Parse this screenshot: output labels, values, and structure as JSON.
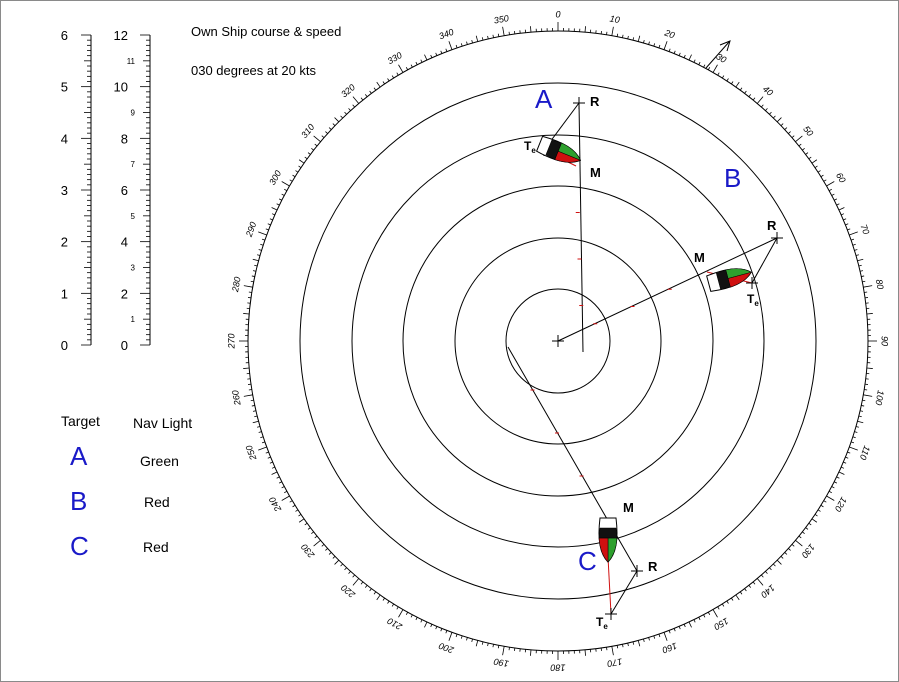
{
  "info": {
    "line1": "Own  Ship course & speed",
    "line2": "030 degrees at 20 kts"
  },
  "scale_left": {
    "labels": [
      "0",
      "1",
      "2",
      "3",
      "4",
      "5",
      "6"
    ]
  },
  "scale_right": {
    "major_labels": [
      "0",
      "2",
      "4",
      "6",
      "8",
      "10",
      "12"
    ],
    "minor_labels": [
      "1",
      "3",
      "5",
      "7",
      "9",
      "11"
    ]
  },
  "table": {
    "header_target": "Target",
    "header_nav": "Nav Light",
    "rows": [
      {
        "target": "A",
        "light": "Green"
      },
      {
        "target": "B",
        "light": "Red"
      },
      {
        "target": "C",
        "light": "Red"
      }
    ]
  },
  "plot": {
    "bearing_labels": [
      "0",
      "10",
      "20",
      "30",
      "40",
      "50",
      "60",
      "70",
      "80",
      "90",
      "100",
      "110",
      "120",
      "130",
      "140",
      "150",
      "160",
      "170",
      "180",
      "190",
      "200",
      "210",
      "220",
      "230",
      "240",
      "250",
      "260",
      "270",
      "280",
      "290",
      "300",
      "310",
      "320",
      "330",
      "340",
      "350"
    ],
    "targets": [
      {
        "name": "A",
        "label_M": "M",
        "label_R": "R",
        "label_T": "T",
        "label_sub": "e"
      },
      {
        "name": "B",
        "label_M": "M",
        "label_R": "R",
        "label_T": "T",
        "label_sub": "e"
      },
      {
        "name": "C",
        "label_M": "M",
        "label_R": "R",
        "label_T": "T",
        "label_sub": "e"
      }
    ]
  },
  "colors": {
    "text": "#000000",
    "target_letter": "#1a1ac8",
    "red": "#d01010",
    "green": "#2ea02e"
  }
}
